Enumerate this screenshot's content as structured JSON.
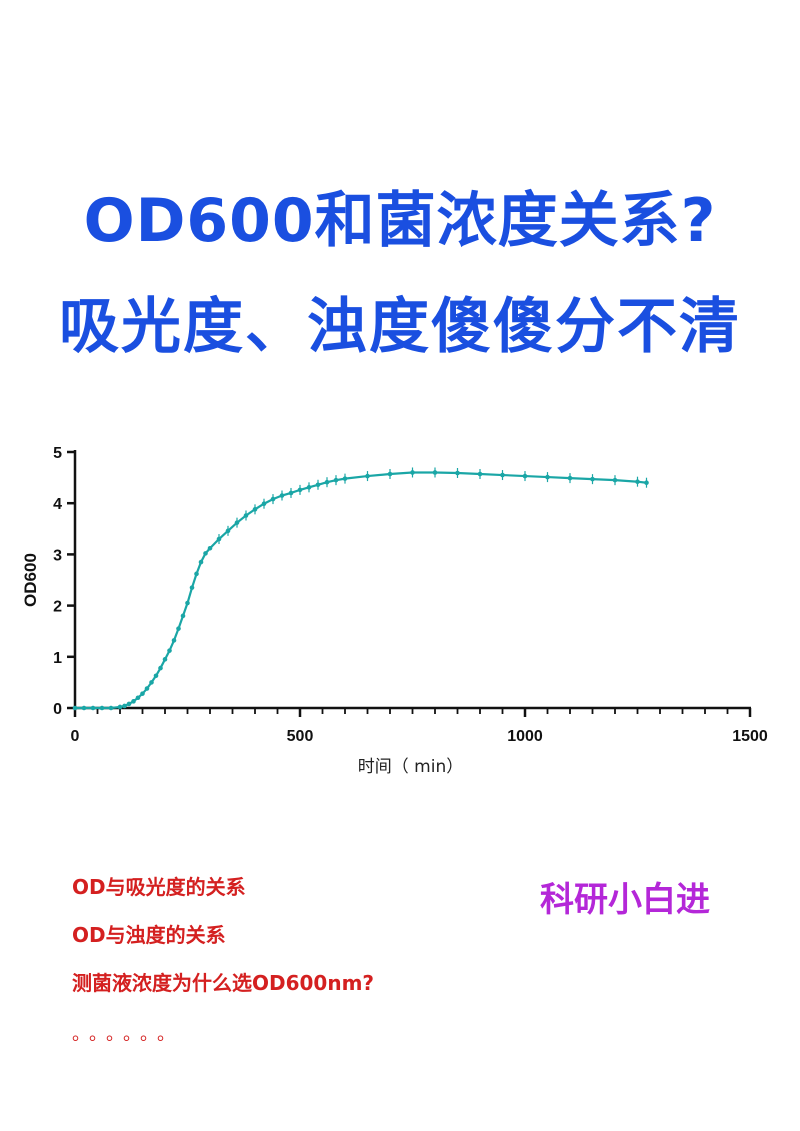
{
  "title": {
    "line1": "OD600和菌浓度关系?",
    "line2": "吸光度、浊度傻傻分不清"
  },
  "colors": {
    "title": "#1a4fe0",
    "bullets": "#d42020",
    "brand": "#b427d8",
    "series": "#1aa6a6"
  },
  "chart_data": {
    "type": "line",
    "title": "",
    "xlabel": "时间（ min）",
    "ylabel": "OD600",
    "xlim": [
      0,
      1500
    ],
    "ylim": [
      0,
      5
    ],
    "xticks": [
      0,
      500,
      1000,
      1500
    ],
    "yticks": [
      0,
      1,
      2,
      3,
      4,
      5
    ],
    "grid": false,
    "error_bars": true,
    "series": [
      {
        "x": [
          0,
          20,
          40,
          60,
          80,
          100,
          110,
          120,
          130,
          140,
          150,
          160,
          170,
          180,
          190,
          200,
          210,
          220,
          230,
          240,
          250,
          260,
          270,
          280,
          290,
          300,
          320,
          340,
          360,
          380,
          400,
          420,
          440,
          460,
          480,
          500,
          520,
          540,
          560,
          580,
          600,
          650,
          700,
          750,
          800,
          850,
          900,
          950,
          1000,
          1050,
          1100,
          1150,
          1200,
          1250,
          1270
        ],
        "values": [
          0,
          0,
          0,
          0,
          0,
          0.02,
          0.04,
          0.08,
          0.13,
          0.2,
          0.28,
          0.38,
          0.5,
          0.63,
          0.78,
          0.95,
          1.12,
          1.32,
          1.55,
          1.8,
          2.05,
          2.35,
          2.62,
          2.85,
          3.02,
          3.12,
          3.3,
          3.46,
          3.62,
          3.76,
          3.88,
          3.99,
          4.08,
          4.15,
          4.2,
          4.26,
          4.31,
          4.36,
          4.41,
          4.45,
          4.48,
          4.53,
          4.57,
          4.6,
          4.6,
          4.59,
          4.57,
          4.55,
          4.53,
          4.51,
          4.49,
          4.47,
          4.45,
          4.42,
          4.4
        ]
      }
    ]
  },
  "bullets": [
    "OD与吸光度的关系",
    "OD与浊度的关系",
    "测菌液浓度为什么选OD600nm?"
  ],
  "dots": "。。。。。。",
  "brand": "科研小白进"
}
